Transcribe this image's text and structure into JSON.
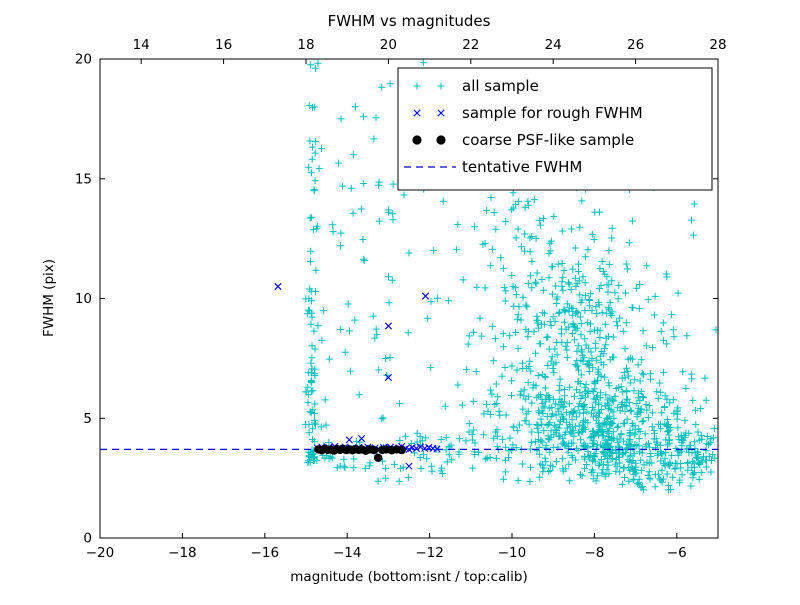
{
  "figure": {
    "background": "#ffffff"
  },
  "chart_data": {
    "type": "scatter",
    "title": "FWHM vs magnitudes",
    "xlabel": "magnitude (bottom:isnt / top:calib)",
    "ylabel": "FWHM (pix)",
    "xlim": [
      -20,
      -5
    ],
    "xlim_top": [
      13,
      28
    ],
    "ylim": [
      0,
      20
    ],
    "grid": false,
    "legend_position": "upper-right",
    "tentative_fwhm_y": 3.7,
    "random_seed": 11,
    "xticks_bottom": {
      "values": [
        -20,
        -18,
        -16,
        -14,
        -12,
        -10,
        -8,
        -6
      ],
      "labels": [
        "−20",
        "−18",
        "−16",
        "−14",
        "−12",
        "−10",
        "−8",
        "−6"
      ]
    },
    "xticks_top": {
      "values": [
        14,
        16,
        18,
        20,
        22,
        24,
        26,
        28
      ],
      "labels": [
        "14",
        "16",
        "18",
        "20",
        "22",
        "24",
        "26",
        "28"
      ]
    },
    "yticks": {
      "values": [
        0,
        5,
        10,
        15,
        20
      ],
      "labels": [
        "0",
        "5",
        "10",
        "15",
        "20"
      ]
    },
    "colors": {
      "all_sample": "#00bfbf",
      "rough_fwhm": "#0000ff",
      "coarse_psf": "#000000",
      "tentative_line": "#0000ff",
      "axes": "#000000"
    },
    "series": [
      {
        "name": "all sample",
        "marker": "plus",
        "color_key": "all_sample",
        "generated_clusters": [
          {
            "n": 85,
            "x": {
              "dist": "gauss",
              "mu": -14.85,
              "sigma": 0.07
            },
            "y": {
              "dist": "pow",
              "min": 3.15,
              "max": 19.9,
              "pow": 1.8
            }
          },
          {
            "n": 25,
            "x": {
              "dist": "gauss",
              "mu": -14.68,
              "sigma": 0.25,
              "min": -15.1,
              "max": -14.1
            },
            "y": {
              "dist": "pow",
              "min": 3.2,
              "max": 17.2,
              "pow": 2.0
            }
          },
          {
            "n": 75,
            "x": {
              "dist": "uniform",
              "min": -14.4,
              "max": -10.8
            },
            "y": {
              "dist": "pow",
              "min": 2.9,
              "max": 15.5,
              "pow": 1.7
            }
          },
          {
            "n": 520,
            "x": {
              "dist": "gauss",
              "mu": -7.9,
              "sigma": 1.2,
              "min": -11.3,
              "max": -5.05
            },
            "y": {
              "dist": "gauss",
              "mu": 4.8,
              "sigma": 1.3,
              "min": 2.3,
              "max": 14.5
            }
          },
          {
            "n": 330,
            "x": {
              "dist": "gauss",
              "mu": -8.5,
              "sigma": 1.0,
              "min": -11.3,
              "max": -5.2
            },
            "y": {
              "dist": "gauss",
              "mu": 9.0,
              "sigma": 2.3,
              "min": 2.5,
              "max": 14.8
            }
          },
          {
            "n": 170,
            "x": {
              "dist": "uniform",
              "min": -8.3,
              "max": -5.05
            },
            "y": {
              "dist": "gauss",
              "mu": 3.6,
              "sigma": 0.45,
              "min": 2.2,
              "max": 5.2
            }
          },
          {
            "n": 40,
            "x": {
              "dist": "uniform",
              "min": -12.6,
              "max": -9.8
            },
            "y": {
              "dist": "gauss",
              "mu": 3.75,
              "sigma": 0.3,
              "min": 3.0,
              "max": 4.6
            }
          },
          {
            "n": 30,
            "x": {
              "dist": "uniform",
              "min": -9.8,
              "max": -5.3
            },
            "y": {
              "dist": "uniform",
              "min": 12.0,
              "max": 17.5
            }
          },
          {
            "n": 12,
            "x": {
              "dist": "uniform",
              "min": -14.2,
              "max": -12.2
            },
            "y": {
              "dist": "uniform",
              "min": 13.0,
              "max": 19.9
            }
          },
          {
            "n": 45,
            "x": {
              "dist": "uniform",
              "min": -7.2,
              "max": -5.05
            },
            "y": {
              "dist": "uniform",
              "min": 1.9,
              "max": 3.2
            }
          },
          {
            "n": 18,
            "x": {
              "dist": "uniform",
              "min": -10.8,
              "max": -9.5
            },
            "y": {
              "dist": "uniform",
              "min": 11.5,
              "max": 14.5
            }
          },
          {
            "n": 10,
            "x": {
              "dist": "uniform",
              "min": -13.5,
              "max": -11.5
            },
            "y": {
              "dist": "uniform",
              "min": 2.0,
              "max": 3.2
            }
          }
        ],
        "extra_points": [
          [
            -13.85,
            16.0
          ],
          [
            -13.6,
            14.8
          ],
          [
            -13.9,
            14.6
          ],
          [
            -12.15,
            19.85
          ],
          [
            -13.0,
            13.6
          ],
          [
            -11.9,
            12.0
          ],
          [
            -12.5,
            11.9
          ],
          [
            -11.35,
            12.05
          ],
          [
            -13.3,
            17.55
          ],
          [
            -14.15,
            17.5
          ],
          [
            -6.0,
            17.3
          ],
          [
            -6.3,
            16.2
          ]
        ]
      },
      {
        "name": "sample for rough FWHM",
        "marker": "x",
        "color_key": "rough_fwhm",
        "points": [
          [
            -15.68,
            10.5
          ],
          [
            -14.72,
            3.75
          ],
          [
            -14.62,
            3.8
          ],
          [
            -14.55,
            3.7
          ],
          [
            -14.45,
            3.78
          ],
          [
            -14.38,
            3.72
          ],
          [
            -14.3,
            3.82
          ],
          [
            -14.22,
            3.75
          ],
          [
            -14.12,
            3.7
          ],
          [
            -14.05,
            3.8
          ],
          [
            -13.95,
            4.1
          ],
          [
            -13.9,
            3.75
          ],
          [
            -13.82,
            3.72
          ],
          [
            -13.72,
            3.78
          ],
          [
            -13.65,
            4.15
          ],
          [
            -13.58,
            3.74
          ],
          [
            -13.5,
            3.8
          ],
          [
            -13.42,
            3.72
          ],
          [
            -13.32,
            3.76
          ],
          [
            -13.22,
            3.7
          ],
          [
            -13.12,
            3.78
          ],
          [
            -13.05,
            3.74
          ],
          [
            -13.0,
            8.85
          ],
          [
            -13.0,
            6.7
          ],
          [
            -12.95,
            3.8
          ],
          [
            -12.85,
            3.72
          ],
          [
            -12.75,
            3.76
          ],
          [
            -12.68,
            3.82
          ],
          [
            -12.58,
            3.74
          ],
          [
            -12.5,
            3.0
          ],
          [
            -12.5,
            3.7
          ],
          [
            -12.42,
            3.78
          ],
          [
            -12.32,
            3.74
          ],
          [
            -12.22,
            3.8
          ],
          [
            -12.12,
            3.74
          ],
          [
            -12.1,
            10.1
          ],
          [
            -12.02,
            3.78
          ],
          [
            -11.92,
            3.74
          ],
          [
            -11.82,
            3.72
          ]
        ]
      },
      {
        "name": "coarse PSF-like sample",
        "marker": "circle",
        "color_key": "coarse_psf",
        "points": [
          [
            -14.7,
            3.7
          ],
          [
            -14.62,
            3.66
          ],
          [
            -14.55,
            3.72
          ],
          [
            -14.47,
            3.68
          ],
          [
            -14.4,
            3.7
          ],
          [
            -14.32,
            3.65
          ],
          [
            -14.25,
            3.71
          ],
          [
            -14.17,
            3.68
          ],
          [
            -14.1,
            3.72
          ],
          [
            -14.02,
            3.67
          ],
          [
            -13.95,
            3.7
          ],
          [
            -13.87,
            3.66
          ],
          [
            -13.8,
            3.71
          ],
          [
            -13.72,
            3.68
          ],
          [
            -13.65,
            3.7
          ],
          [
            -13.55,
            3.64
          ],
          [
            -13.45,
            3.7
          ],
          [
            -13.35,
            3.67
          ],
          [
            -13.25,
            3.35
          ],
          [
            -13.15,
            3.68
          ],
          [
            -13.05,
            3.7
          ],
          [
            -12.92,
            3.66
          ],
          [
            -12.8,
            3.7
          ],
          [
            -12.68,
            3.67
          ]
        ]
      },
      {
        "name": "tentative FWHM",
        "type": "hline",
        "y": 3.7,
        "style": "dashed",
        "color_key": "tentative_line"
      }
    ]
  }
}
